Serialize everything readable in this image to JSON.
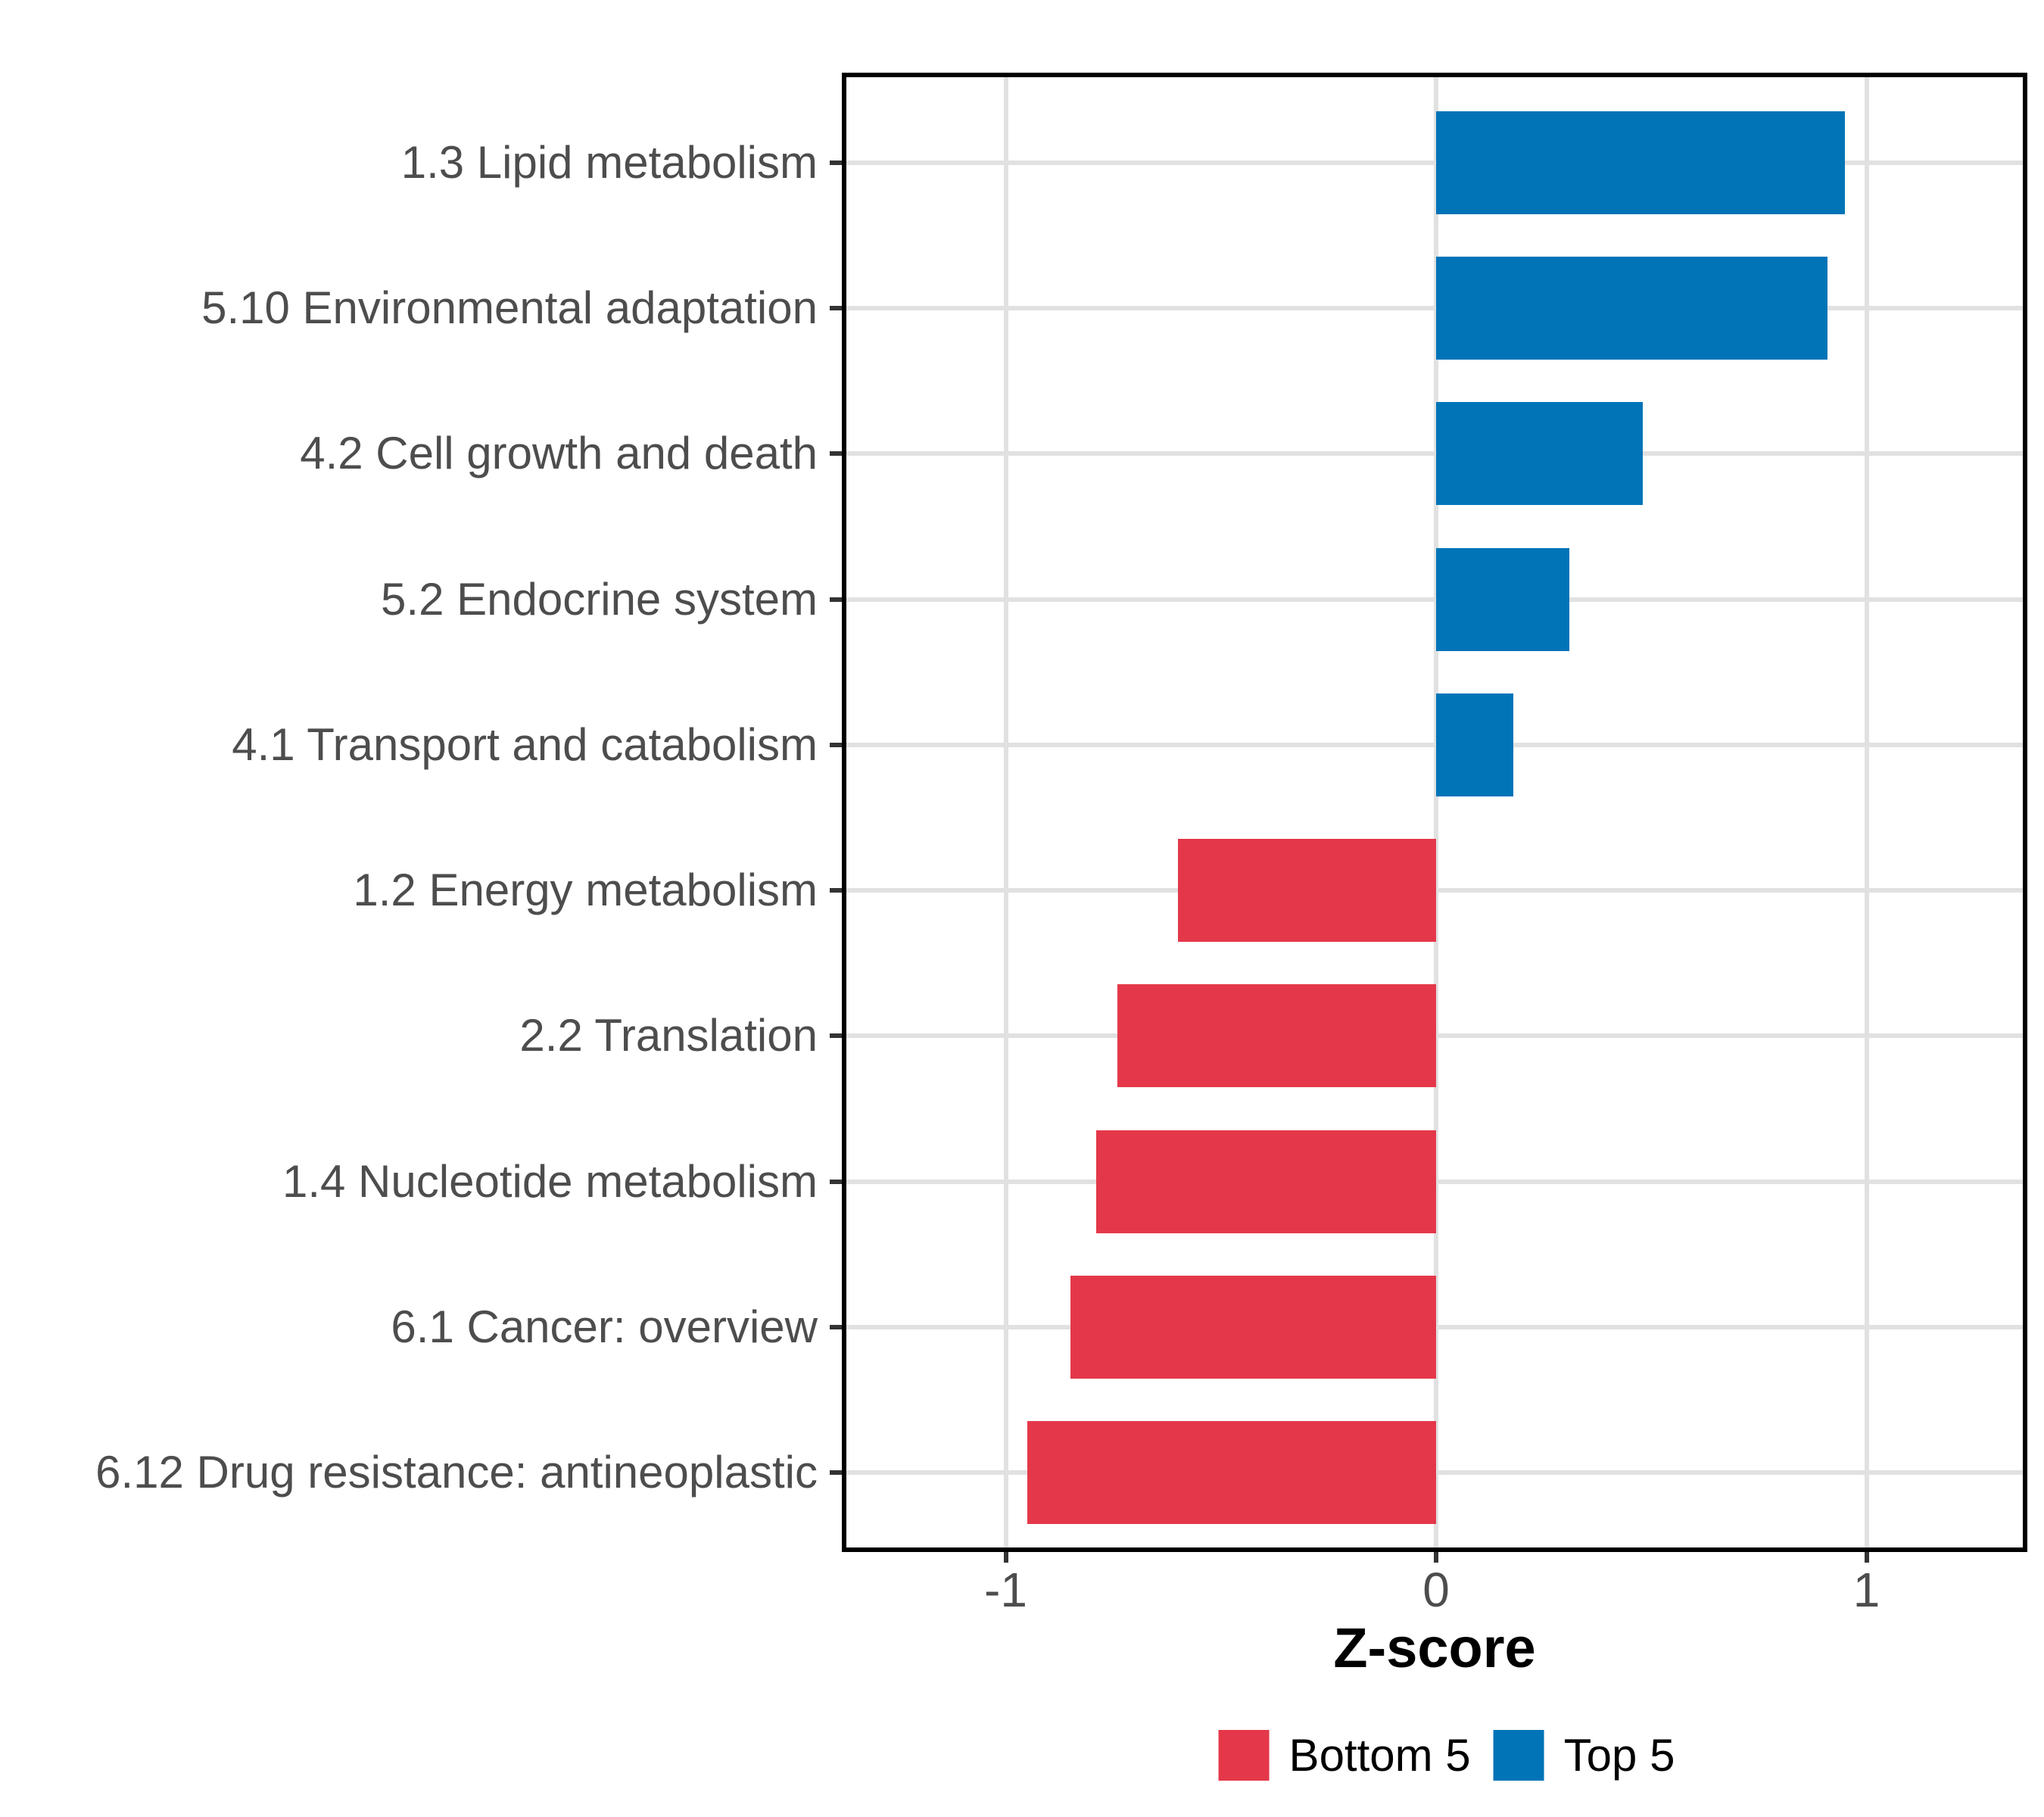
{
  "chart_data": {
    "type": "bar",
    "orientation": "horizontal",
    "title": "",
    "xlabel": "Z-score",
    "ylabel": "",
    "categories": [
      "1.3 Lipid metabolism",
      "5.10 Environmental adaptation",
      "4.2 Cell growth and death",
      "5.2 Endocrine system",
      "4.1 Transport and catabolism",
      "1.2 Energy metabolism",
      "2.2 Translation",
      "1.4 Nucleotide metabolism",
      "6.1 Cancer: overview",
      "6.12 Drug resistance: antineoplastic"
    ],
    "series": [
      {
        "name": "Z-score",
        "values": [
          0.95,
          0.91,
          0.48,
          0.31,
          0.18,
          -0.6,
          -0.74,
          -0.79,
          -0.85,
          -0.95
        ],
        "groups": [
          "Top 5",
          "Top 5",
          "Top 5",
          "Top 5",
          "Top 5",
          "Bottom 5",
          "Bottom 5",
          "Bottom 5",
          "Bottom 5",
          "Bottom 5"
        ]
      }
    ],
    "xlim": [
      -1.38,
      1.37
    ],
    "xticks": [
      -1,
      0,
      1
    ],
    "xtick_labels": [
      "-1",
      "0",
      "1"
    ],
    "grid": "major-both",
    "legend_position": "bottom",
    "legend": [
      {
        "label": "Bottom 5",
        "color": "#e4384a"
      },
      {
        "label": "Top 5",
        "color": "#0074b7"
      }
    ],
    "group_colors": {
      "Bottom 5": "#e4384a",
      "Top 5": "#0074b7"
    }
  },
  "colors": {
    "background": "#ffffff",
    "panel_border": "#000000",
    "gridline": "#e1e1e1",
    "tick": "#333333",
    "axis_text": "#4d4d4d",
    "axis_title": "#000000",
    "bar_positive": "#0074b7",
    "bar_negative": "#e4384a"
  }
}
